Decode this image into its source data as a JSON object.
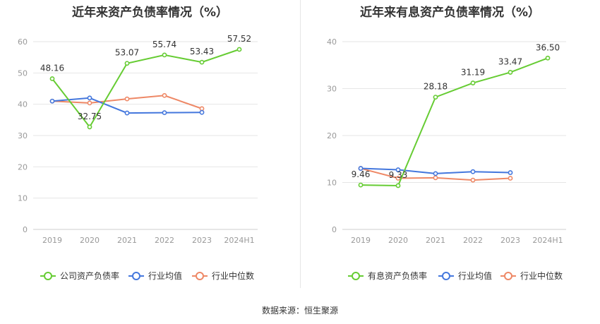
{
  "source_label": "数据来源：恒生聚源",
  "colors": {
    "company": "#66cc33",
    "industry_avg": "#4477dd",
    "industry_median": "#ee8866",
    "grid": "#e6e6e6",
    "axis_text": "#999999",
    "label_text": "#333333"
  },
  "chart_data": [
    {
      "type": "line",
      "title": "近年来资产负债率情况（%）",
      "categories": [
        "2019",
        "2020",
        "2021",
        "2022",
        "2023",
        "2024H1"
      ],
      "ylim": [
        0,
        60
      ],
      "yticks": [
        0,
        10,
        20,
        30,
        40,
        50,
        60
      ],
      "series": [
        {
          "name": "公司资产负债率",
          "color_key": "company",
          "show_labels": true,
          "values": [
            48.16,
            32.75,
            53.07,
            55.74,
            53.43,
            57.52
          ],
          "labels": [
            "48.16",
            "32.75",
            "53.07",
            "55.74",
            "53.43",
            "57.52"
          ]
        },
        {
          "name": "行业均值",
          "color_key": "industry_avg",
          "show_labels": false,
          "values": [
            41.0,
            42.0,
            37.2,
            37.3,
            37.4,
            null
          ]
        },
        {
          "name": "行业中位数",
          "color_key": "industry_median",
          "show_labels": false,
          "values": [
            41.0,
            40.4,
            41.7,
            42.8,
            38.6,
            null
          ]
        }
      ]
    },
    {
      "type": "line",
      "title": "近年来有息资产负债率情况（%）",
      "categories": [
        "2019",
        "2020",
        "2021",
        "2022",
        "2023",
        "2024H1"
      ],
      "ylim": [
        0,
        40
      ],
      "yticks": [
        0,
        10,
        20,
        30,
        40
      ],
      "series": [
        {
          "name": "有息资产负债率",
          "color_key": "company",
          "show_labels": true,
          "values": [
            9.46,
            9.33,
            28.18,
            31.19,
            33.47,
            36.5
          ],
          "labels": [
            "9.46",
            "9.33",
            "28.18",
            "31.19",
            "33.47",
            "36.50"
          ]
        },
        {
          "name": "行业均值",
          "color_key": "industry_avg",
          "show_labels": false,
          "values": [
            13.0,
            12.7,
            11.9,
            12.3,
            12.1,
            null
          ]
        },
        {
          "name": "行业中位数",
          "color_key": "industry_median",
          "show_labels": false,
          "values": [
            13.0,
            10.9,
            11.0,
            10.5,
            10.9,
            null
          ]
        }
      ]
    }
  ]
}
